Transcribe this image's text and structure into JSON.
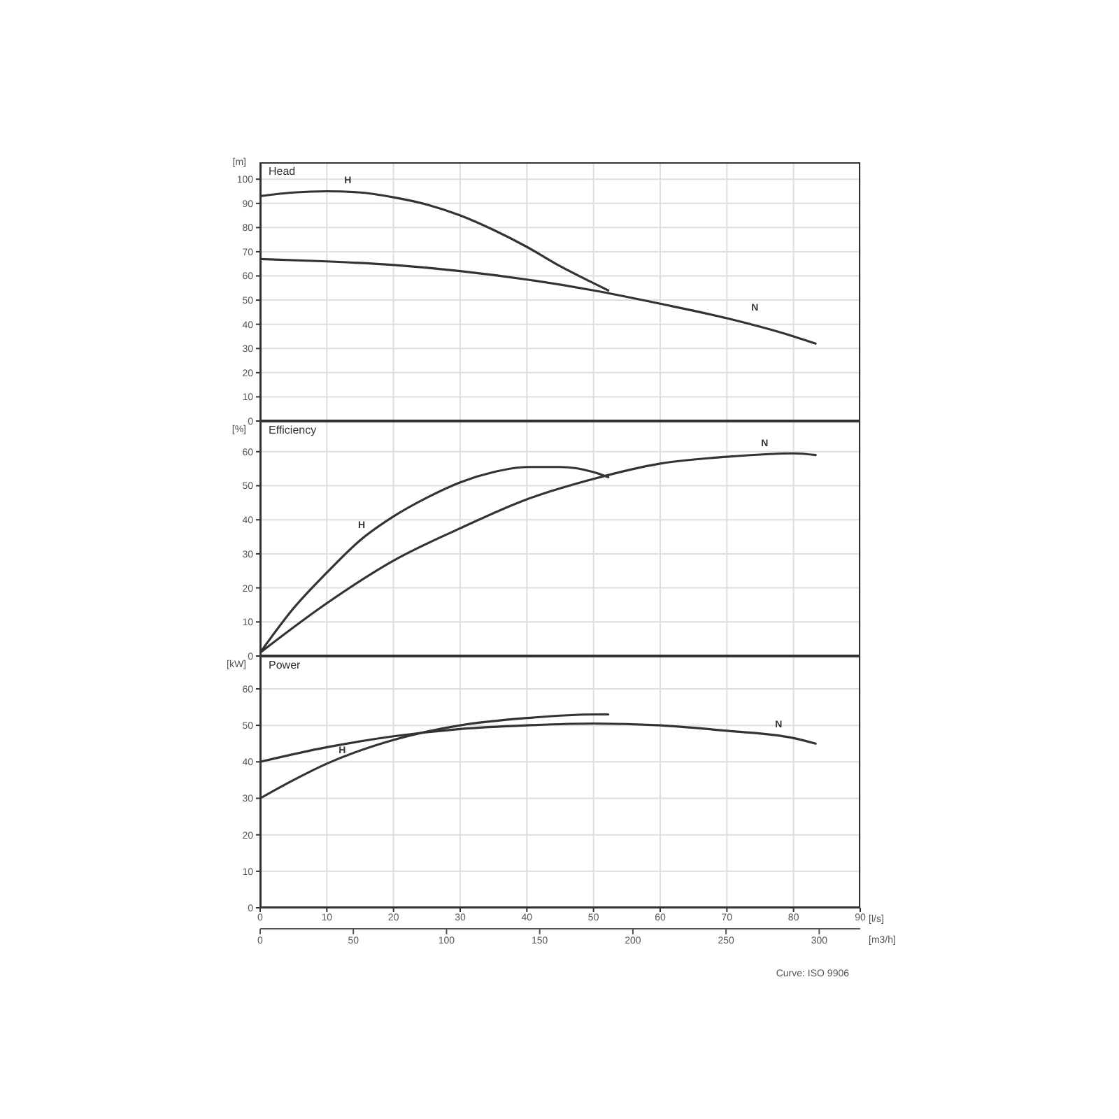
{
  "chart_data": [
    {
      "type": "line",
      "title": "Head",
      "ylabel": "[m]",
      "xlim": [
        0,
        90
      ],
      "xticks": [
        0,
        10,
        20,
        30,
        40,
        50,
        60,
        70,
        80,
        90
      ],
      "ylim": [
        0,
        107
      ],
      "yticks": [
        0,
        10,
        20,
        30,
        40,
        50,
        60,
        70,
        80,
        90,
        100
      ],
      "grid": true,
      "tick_labels": "y",
      "marker": "none",
      "line_style": "solid",
      "series": [
        {
          "name": "H",
          "color": "#333333",
          "x": [
            0,
            5,
            10,
            15,
            20,
            25,
            30,
            35,
            40,
            45,
            50,
            52.2
          ],
          "values": [
            93,
            94.5,
            95,
            94.5,
            92.5,
            89.5,
            85,
            79,
            72,
            64,
            57,
            54
          ]
        },
        {
          "name": "N",
          "color": "#333333",
          "x": [
            0,
            10,
            20,
            30,
            40,
            50,
            60,
            70,
            80,
            83.3
          ],
          "values": [
            67,
            66,
            64.5,
            62,
            58.5,
            54,
            48.5,
            42.5,
            35,
            32
          ]
        }
      ]
    },
    {
      "type": "line",
      "title": "Efficiency",
      "ylabel": "[%]",
      "xlim": [
        0,
        90
      ],
      "xticks": [
        0,
        10,
        20,
        30,
        40,
        50,
        60,
        70,
        80,
        90
      ],
      "ylim": [
        0,
        69
      ],
      "yticks": [
        0,
        10,
        20,
        30,
        40,
        50,
        60
      ],
      "grid": true,
      "tick_labels": "y",
      "marker": "none",
      "line_style": "solid",
      "series": [
        {
          "name": "H",
          "color": "#333333",
          "x": [
            0,
            5,
            10,
            15,
            20,
            25,
            30,
            35,
            40,
            45,
            50,
            52.2
          ],
          "values": [
            1,
            14,
            24.5,
            34,
            41,
            46.5,
            51,
            54,
            55.5,
            55.5,
            54,
            52.5
          ]
        },
        {
          "name": "N",
          "color": "#333333",
          "x": [
            0,
            10,
            20,
            30,
            40,
            50,
            60,
            70,
            80,
            83.3
          ],
          "values": [
            1,
            15.5,
            28,
            37.5,
            46,
            52,
            56.5,
            58.5,
            59.5,
            59
          ]
        }
      ]
    },
    {
      "type": "line",
      "title": "Power",
      "ylabel": "[kW]",
      "xlabel": "[l/s]",
      "xlim": [
        0,
        90
      ],
      "xticks": [
        0,
        10,
        20,
        30,
        40,
        50,
        60,
        70,
        80,
        90
      ],
      "ylim": [
        0,
        69
      ],
      "yticks": [
        0,
        10,
        20,
        30,
        40,
        50,
        60
      ],
      "x2label": "[m3/h]",
      "x2lim": [
        0,
        322
      ],
      "x2ticks": [
        0,
        50,
        100,
        150,
        200,
        250,
        300
      ],
      "grid": true,
      "marker": "none",
      "line_style": "solid",
      "annotations": [
        "Curve: ISO 9906"
      ],
      "series": [
        {
          "name": "H",
          "color": "#333333",
          "x": [
            0,
            5,
            10,
            20,
            30,
            40,
            50,
            52.2
          ],
          "values": [
            30,
            35,
            39.5,
            46,
            50,
            52,
            53,
            53
          ]
        },
        {
          "name": "N",
          "color": "#333333",
          "x": [
            0,
            10,
            20,
            30,
            40,
            50,
            60,
            70,
            80,
            83.3
          ],
          "values": [
            40,
            44,
            47,
            49,
            50,
            50.5,
            50,
            48.5,
            46.5,
            45
          ]
        }
      ]
    }
  ]
}
